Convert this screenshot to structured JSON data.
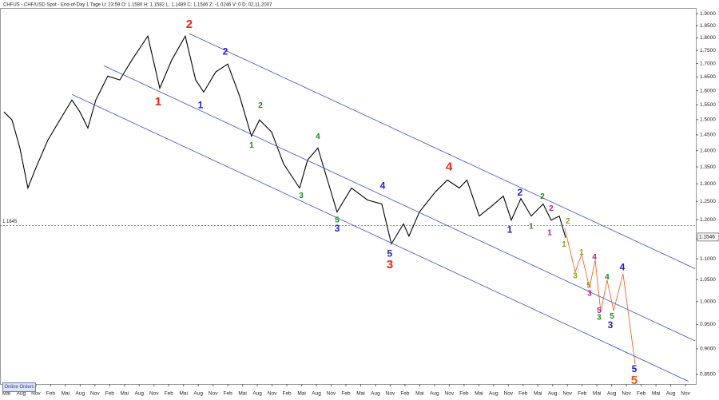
{
  "chart_data": {
    "type": "line",
    "header": "CHFUS - CHF/USD Spot - End-of-Day 1 Tage  U: 23:59  O: 1.1580  H: 1.1582  L: 1.1489  C: 1.1546  Z: -1.0246  V: 0  D: 02.11.2007",
    "categories": [
      "Mai",
      "Aug",
      "Nov",
      "Feb",
      "Mai",
      "Aug",
      "Nov",
      "Feb",
      "Mai",
      "Aug",
      "Nov",
      "Feb",
      "Mai",
      "Aug",
      "Nov",
      "Feb",
      "Mai",
      "Aug",
      "Nov",
      "Feb",
      "Mai",
      "Aug",
      "Nov",
      "Feb",
      "Mai",
      "Aug",
      "Nov",
      "Feb",
      "Mai",
      "Aug",
      "Nov",
      "Feb",
      "Mai",
      "Aug",
      "Nov",
      "Feb",
      "Mai",
      "Aug",
      "Nov",
      "Feb",
      "Mai",
      "Aug",
      "Nov",
      "Feb",
      "Mai",
      "Aug",
      "Nov"
    ],
    "xlim": [
      -0.43,
      46.7
    ],
    "ylim": [
      0.832,
      1.924
    ],
    "log_y": true,
    "yticks": [
      {
        "value": 0.85,
        "label": "0.8500"
      },
      {
        "value": 0.9,
        "label": "0.9000"
      },
      {
        "value": 0.95,
        "label": "0.9500"
      },
      {
        "value": 1.0,
        "label": "1.0000"
      },
      {
        "value": 1.05,
        "label": "1.0500"
      },
      {
        "value": 1.1,
        "label": "1.1000"
      },
      {
        "value": 1.15,
        "label": "1.1500"
      },
      {
        "value": 1.2,
        "label": "1.2000"
      },
      {
        "value": 1.25,
        "label": "1.2500"
      },
      {
        "value": 1.3,
        "label": "1.3000"
      },
      {
        "value": 1.35,
        "label": "1.3500"
      },
      {
        "value": 1.4,
        "label": "1.4000"
      },
      {
        "value": 1.45,
        "label": "1.4500"
      },
      {
        "value": 1.5,
        "label": "1.5000"
      },
      {
        "value": 1.55,
        "label": "1.5500"
      },
      {
        "value": 1.6,
        "label": "1.6000"
      },
      {
        "value": 1.65,
        "label": "1.6500"
      },
      {
        "value": 1.7,
        "label": "1.7000"
      },
      {
        "value": 1.75,
        "label": "1.7500"
      },
      {
        "value": 1.8,
        "label": "1.8000"
      },
      {
        "value": 1.85,
        "label": "1.8500"
      },
      {
        "value": 1.9,
        "label": "1.9000"
      }
    ],
    "series": [
      {
        "color": "#000000",
        "x": [
          -0.16,
          0.38,
          0.92,
          1.46,
          2.0,
          2.81,
          3.63,
          4.44,
          4.98,
          5.52,
          6.06,
          6.87,
          7.68,
          8.5,
          9.58,
          10.39,
          11.2,
          12.12,
          12.82,
          13.37,
          14.18,
          14.99,
          15.8,
          16.6,
          17.15,
          17.97,
          18.78,
          19.86,
          20.4,
          21.1,
          21.75,
          22.4,
          23.38,
          24.46,
          25.43,
          26.08,
          26.9,
          27.27,
          27.98,
          29.06,
          29.87,
          30.68,
          31.2,
          32.03,
          32.85,
          33.66,
          34.2,
          34.85,
          35.55,
          36.36,
          36.9,
          37.45,
          37.88
        ],
        "values": [
          1.526,
          1.499,
          1.408,
          1.288,
          1.347,
          1.433,
          1.499,
          1.567,
          1.526,
          1.472,
          1.567,
          1.653,
          1.639,
          1.713,
          1.807,
          1.609,
          1.713,
          1.807,
          1.639,
          1.595,
          1.668,
          1.698,
          1.581,
          1.446,
          1.499,
          1.459,
          1.359,
          1.288,
          1.371,
          1.408,
          1.311,
          1.221,
          1.288,
          1.254,
          1.243,
          1.137,
          1.189,
          1.157,
          1.221,
          1.277,
          1.311,
          1.288,
          1.311,
          1.21,
          1.236,
          1.265,
          1.199,
          1.258,
          1.21,
          1.243,
          1.199,
          1.21,
          1.153
        ]
      },
      {
        "color": "#3a4fc4",
        "x": [
          12.39,
          46.65
        ],
        "values": [
          1.817,
          1.076
        ]
      },
      {
        "color": "#3a4fc4",
        "x": [
          6.6,
          46.65
        ],
        "values": [
          1.692,
          0.916
        ]
      },
      {
        "color": "#3a4fc4",
        "x": [
          4.44,
          46.2
        ],
        "values": [
          1.587,
          0.837
        ]
      },
      {
        "color": "#e8581c",
        "x": [
          37.82,
          38.53,
          38.96,
          39.5,
          39.88,
          40.26,
          40.69,
          41.13,
          41.77,
          42.59
        ],
        "values": [
          1.178,
          1.068,
          1.111,
          1.031,
          1.097,
          0.977,
          1.049,
          0.98,
          1.064,
          0.87
        ]
      }
    ],
    "reference_line": {
      "value": 1.1845,
      "label": "1.1845"
    },
    "last_price": {
      "value": 1.1546,
      "label": "1.1546"
    },
    "annotations": [
      {
        "text": "2",
        "color": "#e8261c",
        "x": 12.39,
        "y": 1.853
      },
      {
        "text": "1",
        "color": "#e8261c",
        "x": 10.28,
        "y": 1.559
      },
      {
        "text": "2",
        "color": "#2222cc",
        "x": 14.83,
        "y": 1.744
      },
      {
        "text": "1",
        "color": "#2222cc",
        "x": 13.15,
        "y": 1.548
      },
      {
        "text": "2",
        "color": "#1a8a1a",
        "x": 17.21,
        "y": 1.548
      },
      {
        "text": "1",
        "color": "#1a8a1a",
        "x": 16.61,
        "y": 1.416
      },
      {
        "text": "4",
        "color": "#1a8a1a",
        "x": 21.1,
        "y": 1.444
      },
      {
        "text": "3",
        "color": "#1a8a1a",
        "x": 19.97,
        "y": 1.265
      },
      {
        "text": "5",
        "color": "#1a8a1a",
        "x": 22.4,
        "y": 1.199
      },
      {
        "text": "3",
        "color": "#2222cc",
        "x": 22.4,
        "y": 1.176
      },
      {
        "text": "4",
        "color": "#2222cc",
        "x": 25.49,
        "y": 1.293
      },
      {
        "text": "5",
        "color": "#2222cc",
        "x": 25.97,
        "y": 1.111
      },
      {
        "text": "3",
        "color": "#e8261c",
        "x": 25.97,
        "y": 1.085
      },
      {
        "text": "4",
        "color": "#e8261c",
        "x": 29.98,
        "y": 1.349
      },
      {
        "text": "2",
        "color": "#2222cc",
        "x": 34.79,
        "y": 1.274
      },
      {
        "text": "1",
        "color": "#2222cc",
        "x": 34.09,
        "y": 1.172
      },
      {
        "text": "2",
        "color": "#1a8a1a",
        "x": 36.31,
        "y": 1.263
      },
      {
        "text": "1",
        "color": "#1a8a1a",
        "x": 35.55,
        "y": 1.182
      },
      {
        "text": "2",
        "color": "#b0208c",
        "x": 36.9,
        "y": 1.23
      },
      {
        "text": "1",
        "color": "#b0208c",
        "x": 36.8,
        "y": 1.165
      },
      {
        "text": "1",
        "color": "#9a9a10",
        "x": 37.77,
        "y": 1.135
      },
      {
        "text": "2",
        "color": "#9a9a10",
        "x": 38.04,
        "y": 1.195
      },
      {
        "text": "1",
        "color": "#9a9a10",
        "x": 38.96,
        "y": 1.115
      },
      {
        "text": "3",
        "color": "#9a9a10",
        "x": 38.53,
        "y": 1.058
      },
      {
        "text": "4",
        "color": "#b0208c",
        "x": 39.83,
        "y": 1.103
      },
      {
        "text": "5",
        "color": "#9a9a10",
        "x": 39.45,
        "y": 1.036
      },
      {
        "text": "3",
        "color": "#b0208c",
        "x": 39.5,
        "y": 1.018
      },
      {
        "text": "5",
        "color": "#b0208c",
        "x": 40.15,
        "y": 0.979
      },
      {
        "text": "4",
        "color": "#1a8a1a",
        "x": 40.69,
        "y": 1.055
      },
      {
        "text": "3",
        "color": "#1a8a1a",
        "x": 40.15,
        "y": 0.965
      },
      {
        "text": "5",
        "color": "#1a8a1a",
        "x": 41.02,
        "y": 0.967
      },
      {
        "text": "3",
        "color": "#2222cc",
        "x": 40.91,
        "y": 0.948
      },
      {
        "text": "4",
        "color": "#2222cc",
        "x": 41.72,
        "y": 1.078
      },
      {
        "text": "5",
        "color": "#2222cc",
        "x": 42.53,
        "y": 0.859
      },
      {
        "text": "5",
        "color": "#e8581c",
        "x": 42.53,
        "y": 0.838
      }
    ]
  },
  "button": "Online Orders"
}
